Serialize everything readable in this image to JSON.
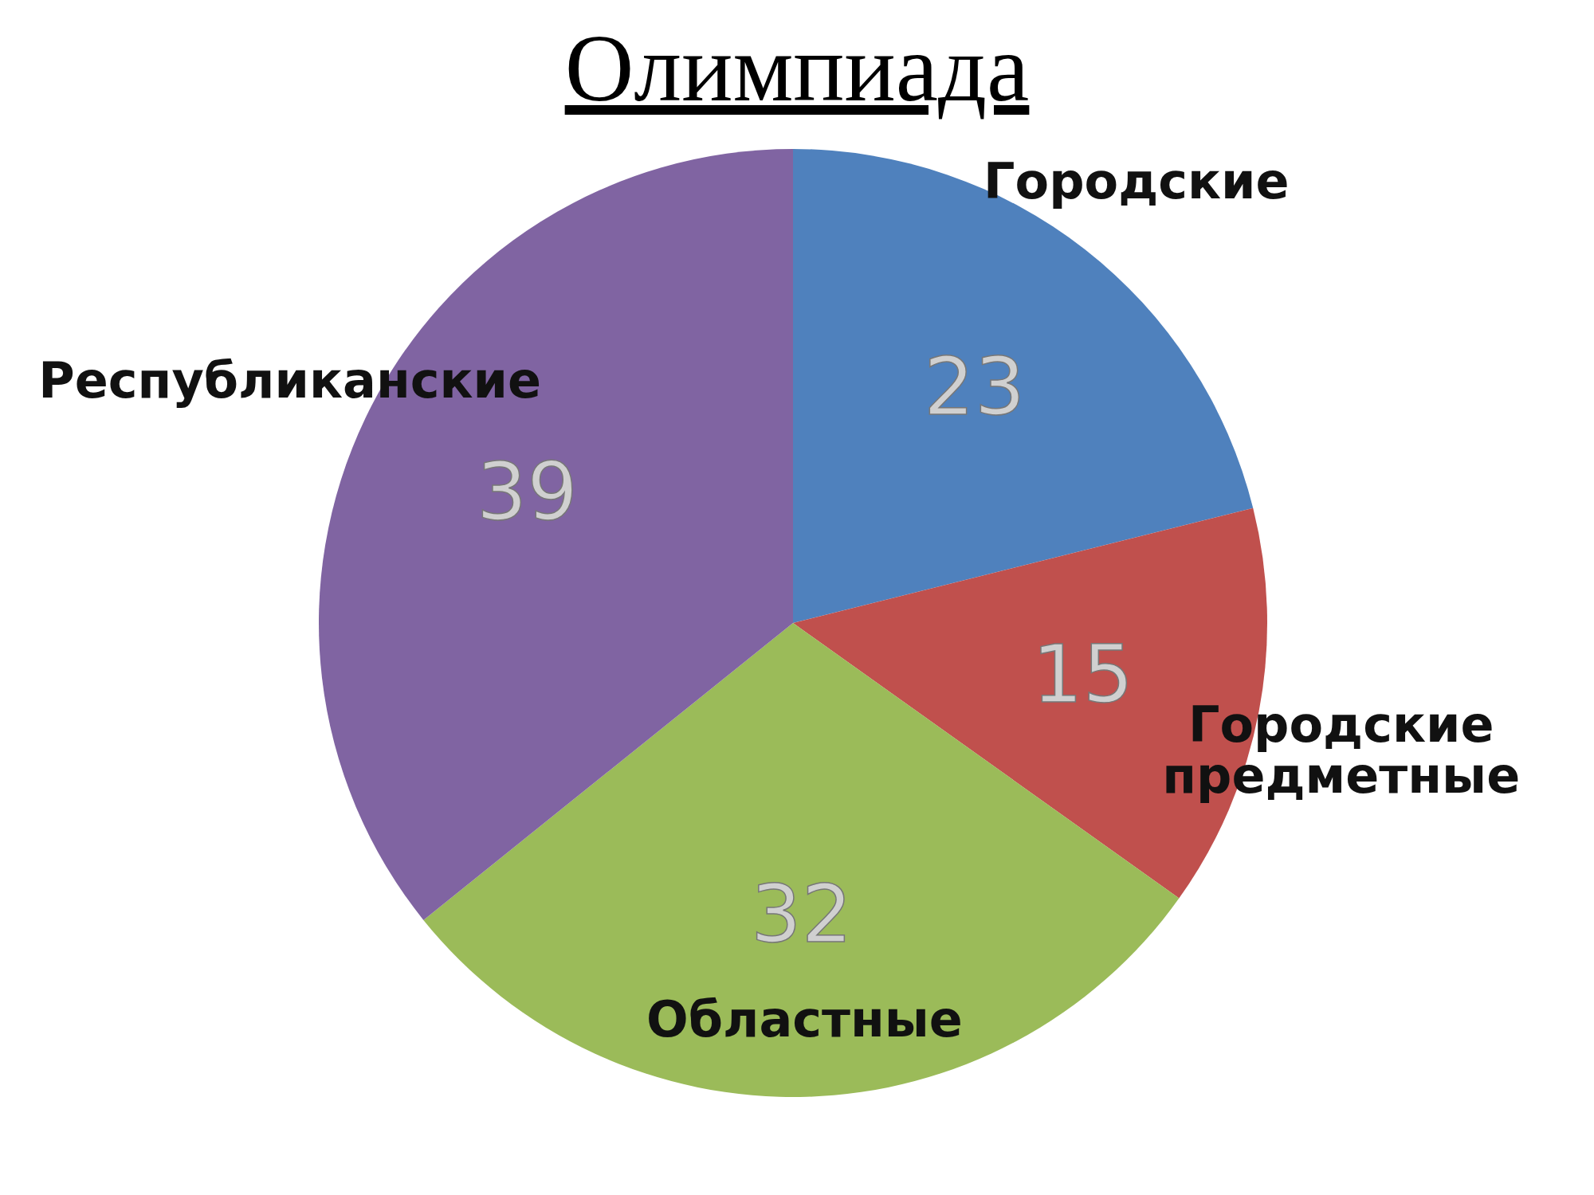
{
  "chart_data": {
    "type": "pie",
    "title": "Олимпиада",
    "categories": [
      "Городские",
      "Городские предметные",
      "Областные",
      "Республиканские"
    ],
    "values": [
      23,
      15,
      32,
      39
    ],
    "colors": [
      "#4f81bd",
      "#c0504d",
      "#9bbb59",
      "#8064a2"
    ],
    "data_labels": true,
    "legend": false
  }
}
